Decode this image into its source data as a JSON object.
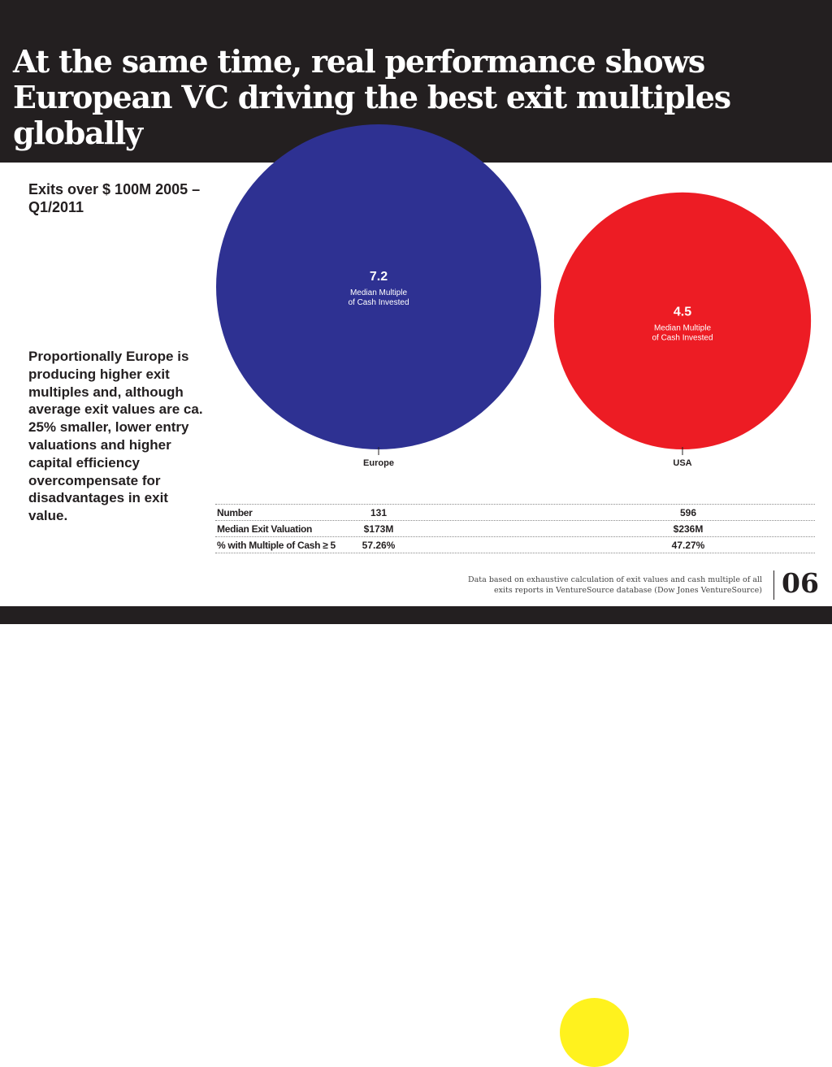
{
  "title": "At the same time, real performance shows European VC driving the best exit multiples globally",
  "subtitle": "Exits over $ 100M 2005 – Q1/2011",
  "side_text": "Proportionally Europe is producing higher exit multiples and, although average exit values are ca. 25% smaller, lower entry valuations and higher capital efficiency overcompensate for disadvantages in exit value.",
  "colors": {
    "europe": "#2e3192",
    "usa": "#ed1c24",
    "highlight": "#fff21e",
    "dark": "#231f20"
  },
  "chart_data": {
    "type": "bubble",
    "categories": [
      "Europe",
      "USA"
    ],
    "values": [
      7.2,
      4.5
    ],
    "value_labels": [
      "7.2",
      "4.5"
    ],
    "value_caption": "Median Multiple of Cash Invested",
    "table": {
      "rows": [
        {
          "label": "Number",
          "values": [
            "131",
            "596"
          ]
        },
        {
          "label": "Median Exit Valuation",
          "values": [
            "$173M",
            "$236M"
          ]
        },
        {
          "label": "% with Multiple of Cash ≥ 5",
          "values": [
            "57.26%",
            "47.27%"
          ]
        }
      ],
      "highlighted_column": "Europe"
    }
  },
  "footnote": "Data based on exhaustive calculation of exit values and cash multiple of all exits reports in VentureSource database (Dow Jones VentureSource)",
  "page_number": "06"
}
